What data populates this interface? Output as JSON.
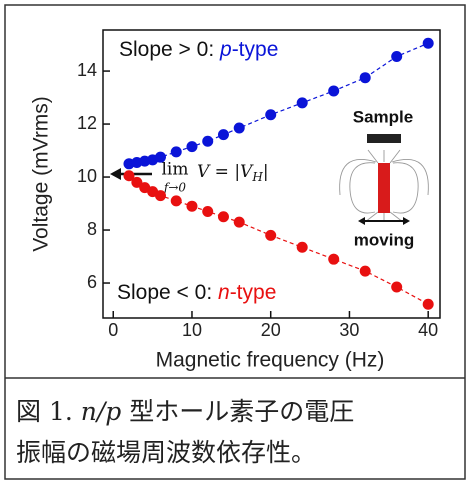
{
  "chart_data": {
    "type": "scatter",
    "x_label": "Magnetic frequency (Hz)",
    "y_label": "Voltage (mVrms)",
    "xlim": [
      -1.3,
      41.5
    ],
    "xticks": [
      0,
      10,
      20,
      30,
      40
    ],
    "ylim": [
      4.68,
      15.55
    ],
    "yticks": [
      6,
      8,
      10,
      12,
      14
    ],
    "series": [
      {
        "color": "#0a14d8",
        "x": [
          2,
          3,
          4,
          5,
          6,
          8,
          10,
          12,
          14,
          16,
          20,
          24,
          28,
          32,
          36,
          40
        ],
        "values": [
          10.5,
          10.55,
          10.6,
          10.65,
          10.75,
          10.95,
          11.15,
          11.35,
          11.6,
          11.85,
          12.35,
          12.8,
          13.25,
          13.75,
          14.55,
          15.05
        ]
      },
      {
        "color": "#e81010",
        "x": [
          2,
          3,
          4,
          5,
          6,
          8,
          10,
          12,
          14,
          16,
          20,
          24,
          28,
          32,
          36,
          40
        ],
        "values": [
          10.05,
          9.8,
          9.6,
          9.45,
          9.3,
          9.1,
          8.9,
          8.7,
          8.5,
          8.3,
          7.8,
          7.35,
          6.9,
          6.45,
          5.85,
          5.2
        ]
      }
    ],
    "annotations": [
      {
        "parts": [
          "Slope > 0: ",
          "p",
          "-type"
        ]
      },
      {
        "parts": [
          "Slope < 0: ",
          "n",
          "-type"
        ]
      },
      {
        "parts": [
          "lim",
          "f→0",
          "V = |V",
          "H",
          "|"
        ]
      },
      {
        "parts": [
          "Sample"
        ]
      },
      {
        "parts": [
          "moving"
        ]
      }
    ]
  },
  "caption": {
    "lines": [
      [
        "図 1. ",
        "n/p",
        " 型ホール素子の電圧"
      ],
      [
        "振幅の磁場周波数依存性。"
      ]
    ]
  }
}
